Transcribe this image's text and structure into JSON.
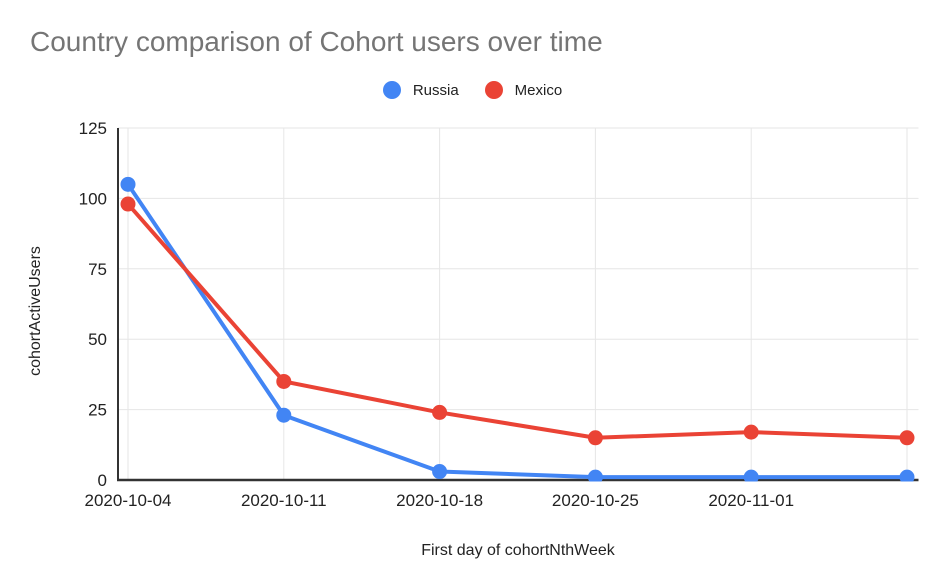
{
  "chart_data": {
    "type": "line",
    "title": "Country comparison of Cohort users over time",
    "xlabel": "First day of cohortNthWeek",
    "ylabel": "cohortActiveUsers",
    "categories": [
      "2020-10-04",
      "2020-10-11",
      "2020-10-18",
      "2020-10-25",
      "2020-11-01",
      ""
    ],
    "series": [
      {
        "name": "Russia",
        "color": "#4285F4",
        "values": [
          105,
          23,
          3,
          1,
          1,
          1
        ]
      },
      {
        "name": "Mexico",
        "color": "#EA4335",
        "values": [
          98,
          35,
          24,
          15,
          17,
          15
        ]
      }
    ],
    "y_ticks": [
      0,
      25,
      50,
      75,
      100,
      125
    ],
    "ylim": [
      0,
      125
    ],
    "grid": true,
    "legend_position": "top",
    "grid_color": "#e6e6e6",
    "axis_color": "#333333",
    "title_color": "#757575",
    "label_color": "#222222",
    "background_color": "#ffffff"
  }
}
